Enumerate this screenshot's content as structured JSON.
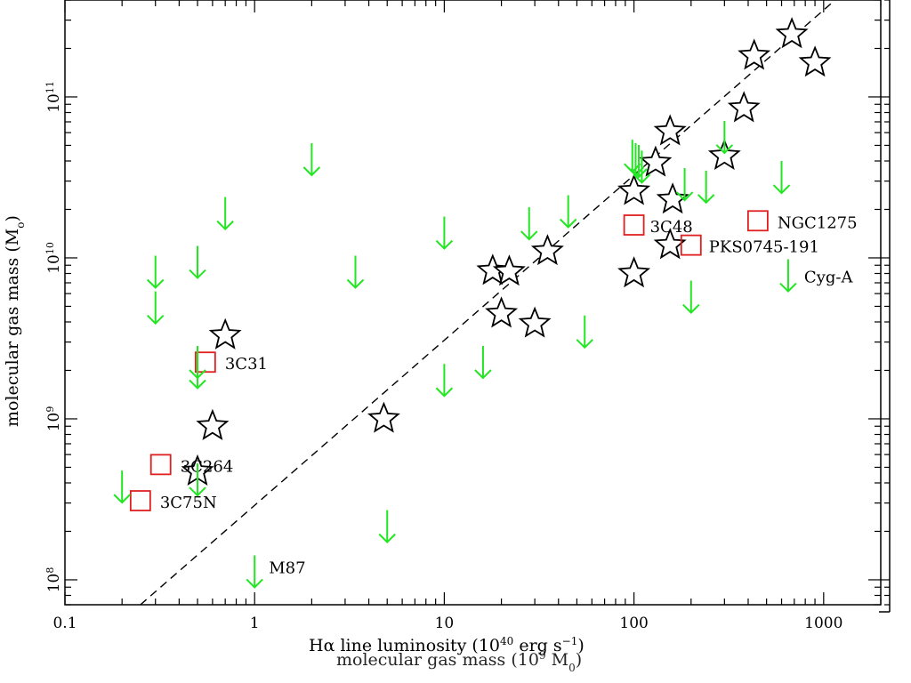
{
  "chart_data": {
    "type": "scatter",
    "title": "",
    "xlabel_main": "Hα line luminosity (10",
    "xlabel_exp": "40",
    "xlabel_units": " erg s",
    "xlabel_unit_exp": "−1",
    "xlabel_close": ")",
    "ylabel": "molecular gas mass (M",
    "ylabel_sub": "o",
    "ylabel_close": ")",
    "xscale": "log",
    "yscale": "log",
    "xlim": [
      0.1,
      2000
    ],
    "ylim": [
      70000000,
      400000000000
    ],
    "grid": false,
    "x_tick_labels": [
      {
        "value": 0.1,
        "label": "0.1"
      },
      {
        "value": 1,
        "label": "1"
      },
      {
        "value": 10,
        "label": "10"
      },
      {
        "value": 100,
        "label": "100"
      },
      {
        "value": 1000,
        "label": "1000"
      }
    ],
    "y_tick_labels": [
      {
        "value": 100000000,
        "base": "10",
        "exp": "8"
      },
      {
        "value": 1000000000,
        "base": "10",
        "exp": "9"
      },
      {
        "value": 10000000000,
        "base": "10",
        "exp": "10"
      },
      {
        "value": 100000000000,
        "base": "10",
        "exp": "11"
      }
    ],
    "trend_line": {
      "style": "dashed",
      "color": "#000000",
      "x": [
        0.25,
        1150
      ],
      "y": [
        70000000,
        400000000000
      ]
    },
    "series": [
      {
        "marker": "star",
        "color": "#000000",
        "points": [
          {
            "x": 0.7,
            "y": 3300000000
          },
          {
            "x": 0.6,
            "y": 900000000
          },
          {
            "x": 0.5,
            "y": 470000000
          },
          {
            "x": 4.8,
            "y": 1000000000
          },
          {
            "x": 18,
            "y": 8300000000
          },
          {
            "x": 22,
            "y": 8200000000
          },
          {
            "x": 20,
            "y": 4500000000
          },
          {
            "x": 30,
            "y": 3900000000
          },
          {
            "x": 35,
            "y": 11000000000
          },
          {
            "x": 100,
            "y": 26000000000
          },
          {
            "x": 100,
            "y": 8000000000
          },
          {
            "x": 130,
            "y": 39000000000
          },
          {
            "x": 155,
            "y": 61000000000
          },
          {
            "x": 155,
            "y": 12000000000
          },
          {
            "x": 160,
            "y": 23000000000
          },
          {
            "x": 300,
            "y": 43000000000
          },
          {
            "x": 380,
            "y": 85000000000
          },
          {
            "x": 430,
            "y": 180000000000
          },
          {
            "x": 680,
            "y": 245000000000
          },
          {
            "x": 900,
            "y": 163000000000
          }
        ]
      },
      {
        "marker": "square",
        "color": "#e02020",
        "points": [
          {
            "x": 0.55,
            "y": 2250000000,
            "label": "3C31"
          },
          {
            "x": 0.32,
            "y": 520000000,
            "label": "3C264"
          },
          {
            "x": 0.25,
            "y": 310000000,
            "label": "3C75N"
          },
          {
            "x": 100,
            "y": 16000000000,
            "label": "3C48"
          },
          {
            "x": 200,
            "y": 12000000000,
            "label": "PKS0745-191"
          },
          {
            "x": 450,
            "y": 17000000000,
            "label": "NGC1275"
          }
        ]
      },
      {
        "marker": "down-arrow",
        "color": "#22e622",
        "points": [
          {
            "x": 0.2,
            "y": 370000000
          },
          {
            "x": 0.3,
            "y": 8000000000
          },
          {
            "x": 0.3,
            "y": 4800000000
          },
          {
            "x": 0.5,
            "y": 9200000000
          },
          {
            "x": 0.5,
            "y": 1900000000
          },
          {
            "x": 0.5,
            "y": 2200000000
          },
          {
            "x": 0.5,
            "y": 410000000
          },
          {
            "x": 0.7,
            "y": 18500000000
          },
          {
            "x": 1,
            "y": 110000000,
            "label": "M87"
          },
          {
            "x": 2,
            "y": 40000000000
          },
          {
            "x": 3.4,
            "y": 8000000000
          },
          {
            "x": 5,
            "y": 210000000
          },
          {
            "x": 10,
            "y": 14000000000
          },
          {
            "x": 10,
            "y": 1700000000
          },
          {
            "x": 16,
            "y": 2200000000
          },
          {
            "x": 28,
            "y": 16000000000
          },
          {
            "x": 45,
            "y": 19000000000
          },
          {
            "x": 55,
            "y": 3400000000
          },
          {
            "x": 98,
            "y": 42000000000
          },
          {
            "x": 102,
            "y": 40000000000
          },
          {
            "x": 106,
            "y": 39000000000
          },
          {
            "x": 110,
            "y": 36000000000
          },
          {
            "x": 185,
            "y": 28000000000
          },
          {
            "x": 200,
            "y": 5600000000
          },
          {
            "x": 240,
            "y": 27000000000
          },
          {
            "x": 300,
            "y": 55000000000
          },
          {
            "x": 600,
            "y": 31000000000
          },
          {
            "x": 650,
            "y": 7600000000,
            "label": "Cyg-A"
          }
        ]
      }
    ],
    "overlap_text": "molecular gas mass (10",
    "overlap_exp": "9",
    "overlap_units": " M",
    "overlap_sub": "0",
    "overlap_close": ")"
  }
}
